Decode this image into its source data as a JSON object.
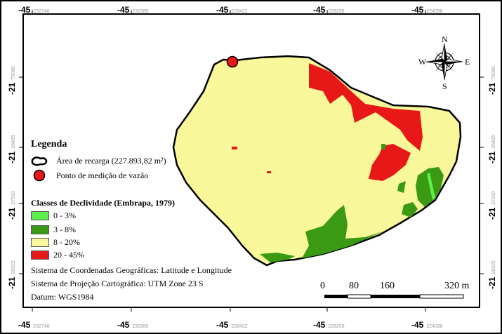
{
  "map": {
    "top_coords": [
      {
        "main": "-45",
        "sub": "232748"
      },
      {
        "main": "-45",
        "sub": "230585"
      },
      {
        "main": "-45",
        "sub": "228422"
      },
      {
        "main": "-45",
        "sub": "226259"
      },
      {
        "main": "-45",
        "sub": "224096"
      }
    ],
    "bottom_coords": [
      {
        "main": "-45",
        "sub": "232748"
      },
      {
        "main": "-45",
        "sub": "230585"
      },
      {
        "main": "-45",
        "sub": "228422"
      },
      {
        "main": "-45",
        "sub": "226259"
      },
      {
        "main": "-45",
        "sub": "224096"
      }
    ],
    "left_coords": [
      {
        "main": "-21",
        "sub": "75080"
      },
      {
        "main": "-21",
        "sub": "26495"
      },
      {
        "main": "-21",
        "sub": "27910"
      },
      {
        "main": "-21",
        "sub": "28325"
      }
    ],
    "right_coords": [
      {
        "main": "-21",
        "sub": "75080"
      },
      {
        "main": "-21",
        "sub": "26495"
      },
      {
        "main": "-21",
        "sub": "27910"
      },
      {
        "main": "-21",
        "sub": "28325"
      }
    ],
    "north_arrow": {
      "n": "N",
      "s": "S",
      "e": "E",
      "w": "W"
    },
    "legend": {
      "title": "Legenda",
      "recharge_area": "Área de recarga (227.893,82 m²)",
      "measurement_point": "Ponto de medição de vazão",
      "slope_title": "Classes de Declividade (Embrapa, 1979)",
      "classes": [
        {
          "label": "0 - 3%",
          "color": "#5df04a"
        },
        {
          "label": "3 - 8%",
          "color": "#3a9a14"
        },
        {
          "label": "8 - 20%",
          "color": "#f8f89a"
        },
        {
          "label": "20 - 45%",
          "color": "#e81818"
        }
      ],
      "info": [
        "Sistema de Coordenadas Geográficas: Latitude e Longitude",
        "Sistema de Projeção Cartográfica: UTM Zone 23 S",
        "Datum: WGS1984"
      ]
    },
    "scale_bar": [
      "0",
      "80",
      "160",
      "320 m"
    ],
    "colors": {
      "frame": "#000000",
      "yellow": "#f8f89a",
      "red": "#e81818",
      "dark_green": "#3a9a14",
      "light_green": "#5df04a",
      "point": "#e81818"
    }
  }
}
